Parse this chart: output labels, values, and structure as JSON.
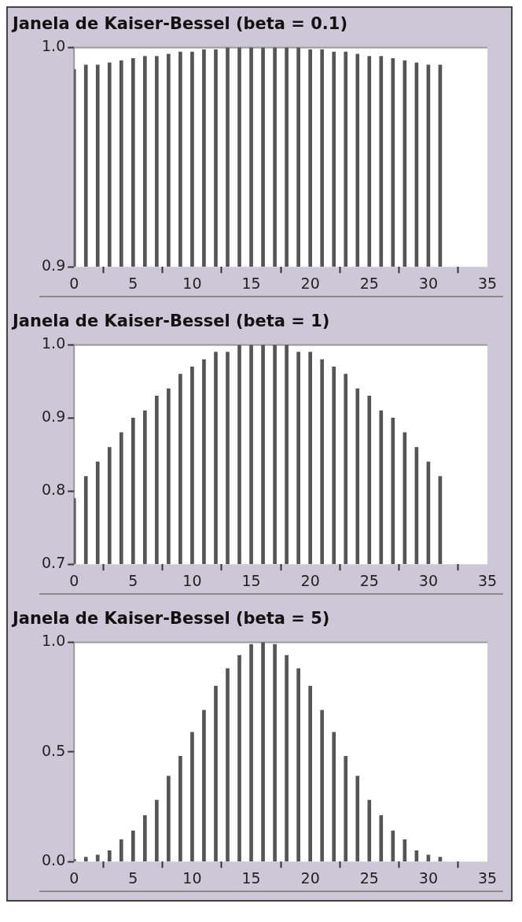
{
  "chart_data": [
    {
      "type": "bar",
      "title": "Janela de Kaiser-Bessel (beta = 0.1)",
      "x": [
        0,
        1,
        2,
        3,
        4,
        5,
        6,
        7,
        8,
        9,
        10,
        11,
        12,
        13,
        14,
        15,
        16,
        17,
        18,
        19,
        20,
        21,
        22,
        23,
        24,
        25,
        26,
        27,
        28,
        29,
        30,
        31
      ],
      "series": [
        {
          "color": "#555555",
          "values": [
            0.99,
            0.992,
            0.992,
            0.993,
            0.994,
            0.995,
            0.996,
            0.996,
            0.997,
            0.998,
            0.998,
            0.999,
            0.999,
            1.0,
            1.0,
            1.0,
            1.0,
            1.0,
            1.0,
            1.0,
            0.999,
            0.999,
            0.998,
            0.998,
            0.997,
            0.996,
            0.996,
            0.995,
            0.994,
            0.993,
            0.992,
            0.992
          ]
        }
      ],
      "xlim": [
        0,
        35
      ],
      "xticks": [
        0,
        5,
        10,
        15,
        20,
        25,
        30,
        35
      ],
      "ylim": [
        0.9,
        1.0
      ],
      "yticks": [
        {
          "value": 0.9,
          "label": "0.9"
        },
        {
          "value": 1.0,
          "label": "1.0"
        }
      ],
      "grid": false,
      "legend": false
    },
    {
      "type": "bar",
      "title": "Janela de Kaiser-Bessel (beta = 1)",
      "x": [
        0,
        1,
        2,
        3,
        4,
        5,
        6,
        7,
        8,
        9,
        10,
        11,
        12,
        13,
        14,
        15,
        16,
        17,
        18,
        19,
        20,
        21,
        22,
        23,
        24,
        25,
        26,
        27,
        28,
        29,
        30,
        31
      ],
      "series": [
        {
          "color": "#555555",
          "values": [
            0.79,
            0.82,
            0.84,
            0.86,
            0.88,
            0.9,
            0.91,
            0.93,
            0.94,
            0.96,
            0.97,
            0.98,
            0.99,
            0.99,
            1.0,
            1.0,
            1.0,
            1.0,
            1.0,
            0.99,
            0.99,
            0.98,
            0.97,
            0.96,
            0.94,
            0.93,
            0.91,
            0.9,
            0.88,
            0.86,
            0.84,
            0.82
          ]
        }
      ],
      "xlim": [
        0,
        35
      ],
      "xticks": [
        0,
        5,
        10,
        15,
        20,
        25,
        30,
        35
      ],
      "ylim": [
        0.7,
        1.0
      ],
      "yticks": [
        {
          "value": 0.7,
          "label": "0.7"
        },
        {
          "value": 0.8,
          "label": "0.8"
        },
        {
          "value": 0.9,
          "label": "0.9"
        },
        {
          "value": 1.0,
          "label": "1.0"
        }
      ],
      "grid": false,
      "legend": false
    },
    {
      "type": "bar",
      "title": "Janela de Kaiser-Bessel (beta = 5)",
      "x": [
        0,
        1,
        2,
        3,
        4,
        5,
        6,
        7,
        8,
        9,
        10,
        11,
        12,
        13,
        14,
        15,
        16,
        17,
        18,
        19,
        20,
        21,
        22,
        23,
        24,
        25,
        26,
        27,
        28,
        29,
        30,
        31
      ],
      "series": [
        {
          "color": "#555555",
          "values": [
            0.01,
            0.02,
            0.03,
            0.05,
            0.1,
            0.14,
            0.21,
            0.28,
            0.39,
            0.48,
            0.59,
            0.69,
            0.8,
            0.88,
            0.94,
            0.99,
            1.0,
            0.99,
            0.94,
            0.88,
            0.8,
            0.69,
            0.59,
            0.48,
            0.39,
            0.28,
            0.21,
            0.14,
            0.1,
            0.05,
            0.03,
            0.02
          ]
        }
      ],
      "xlim": [
        0,
        35
      ],
      "xticks": [
        0,
        5,
        10,
        15,
        20,
        25,
        30,
        35
      ],
      "ylim": [
        0.0,
        1.0
      ],
      "yticks": [
        {
          "value": 0.0,
          "label": "0.0"
        },
        {
          "value": 0.5,
          "label": "0.5"
        },
        {
          "value": 1.0,
          "label": "1.0"
        }
      ],
      "grid": false,
      "legend": false
    }
  ]
}
